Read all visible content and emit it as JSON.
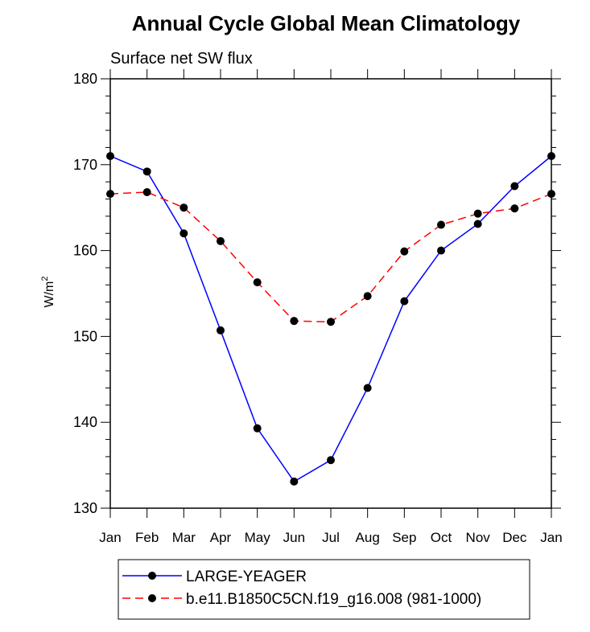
{
  "chart_data": {
    "type": "line",
    "title": "Annual Cycle Global Mean Climatology",
    "subtitle": "Surface net SW flux",
    "ylabel": "W/m",
    "ylabel_superscript": "2",
    "xlabel": "",
    "ylim": [
      130,
      180
    ],
    "yticks": [
      130,
      140,
      150,
      160,
      170,
      180
    ],
    "yticks_minor_step": 2,
    "categories": [
      "Jan",
      "Feb",
      "Mar",
      "Apr",
      "May",
      "Jun",
      "Jul",
      "Aug",
      "Sep",
      "Oct",
      "Nov",
      "Dec",
      "Jan"
    ],
    "grid": false,
    "legend_position": "bottom",
    "series": [
      {
        "name": "LARGE-YEAGER",
        "color": "#0000ff",
        "style": "solid",
        "marker": "filled-circle",
        "values": [
          171.0,
          169.2,
          162.0,
          150.7,
          139.3,
          133.1,
          135.6,
          144.0,
          154.1,
          160.0,
          163.1,
          167.5,
          171.0
        ]
      },
      {
        "name": "b.e11.B1850C5CN.f19_g16.008 (981-1000)",
        "color": "#ff0000",
        "style": "dashed",
        "marker": "filled-circle",
        "values": [
          166.6,
          166.8,
          165.0,
          161.1,
          156.3,
          151.8,
          151.7,
          154.7,
          159.9,
          163.0,
          164.3,
          164.9,
          166.6
        ]
      }
    ]
  }
}
